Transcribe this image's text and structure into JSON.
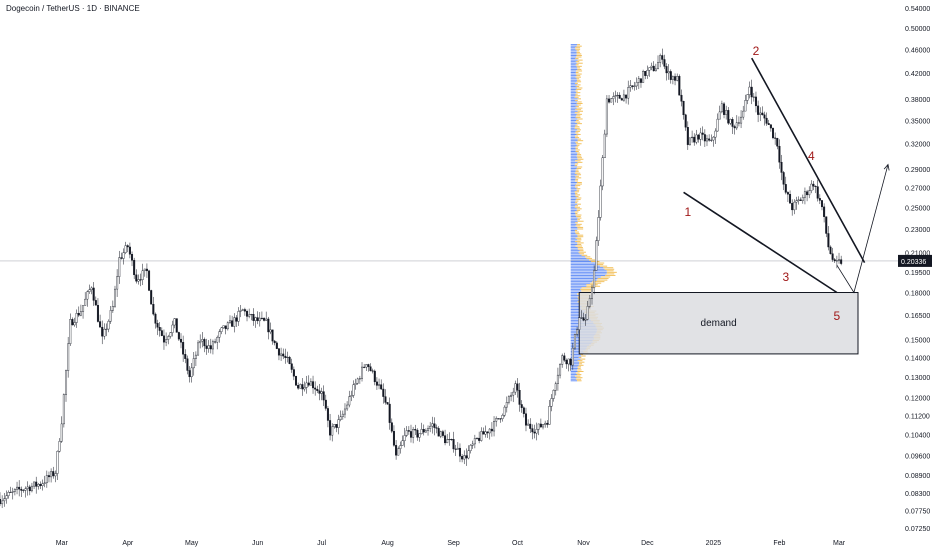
{
  "header": {
    "title": "Dogecoin / TetherUS · 1D · BINANCE"
  },
  "chart_data": {
    "type": "candlestick",
    "y_scale": "log",
    "ylim": [
      0.0725,
      0.54
    ],
    "xlim": [
      "2024-02-01",
      "2025-03-24"
    ],
    "y_ticks": [
      "0.54000",
      "0.50000",
      "0.46000",
      "0.42000",
      "0.38000",
      "0.35000",
      "0.32000",
      "0.29000",
      "0.27000",
      "0.25000",
      "0.23000",
      "0.21000",
      "0.19500",
      "0.18000",
      "0.16500",
      "0.15000",
      "0.14000",
      "0.13000",
      "0.12000",
      "0.11200",
      "0.10400",
      "0.09600",
      "0.08900",
      "0.08300",
      "0.07750",
      "0.07250"
    ],
    "x_ticks": [
      {
        "label": "Mar",
        "date": "2024-03-01"
      },
      {
        "label": "Apr",
        "date": "2024-04-01"
      },
      {
        "label": "May",
        "date": "2024-05-01"
      },
      {
        "label": "Jun",
        "date": "2024-06-01"
      },
      {
        "label": "Jul",
        "date": "2024-07-01"
      },
      {
        "label": "Aug",
        "date": "2024-08-01"
      },
      {
        "label": "Sep",
        "date": "2024-09-01"
      },
      {
        "label": "Oct",
        "date": "2024-10-01"
      },
      {
        "label": "Nov",
        "date": "2024-11-01"
      },
      {
        "label": "Dec",
        "date": "2024-12-01"
      },
      {
        "label": "2025",
        "date": "2025-01-01"
      },
      {
        "label": "Feb",
        "date": "2025-02-01"
      },
      {
        "label": "Mar",
        "date": "2025-03-01"
      }
    ],
    "last_price": {
      "label": "0.20336",
      "value": 0.20336
    },
    "price_path": [
      [
        "2024-02-01",
        0.081
      ],
      [
        "2024-02-10",
        0.084
      ],
      [
        "2024-02-20",
        0.086
      ],
      [
        "2024-02-27",
        0.09
      ],
      [
        "2024-03-01",
        0.11
      ],
      [
        "2024-03-05",
        0.16
      ],
      [
        "2024-03-10",
        0.168
      ],
      [
        "2024-03-15",
        0.185
      ],
      [
        "2024-03-20",
        0.15
      ],
      [
        "2024-03-25",
        0.17
      ],
      [
        "2024-03-28",
        0.205
      ],
      [
        "2024-04-01",
        0.215
      ],
      [
        "2024-04-05",
        0.19
      ],
      [
        "2024-04-10",
        0.195
      ],
      [
        "2024-04-13",
        0.165
      ],
      [
        "2024-04-18",
        0.15
      ],
      [
        "2024-04-23",
        0.16
      ],
      [
        "2024-04-30",
        0.13
      ],
      [
        "2024-05-05",
        0.15
      ],
      [
        "2024-05-10",
        0.145
      ],
      [
        "2024-05-15",
        0.155
      ],
      [
        "2024-05-20",
        0.16
      ],
      [
        "2024-05-25",
        0.168
      ],
      [
        "2024-05-30",
        0.162
      ],
      [
        "2024-06-05",
        0.16
      ],
      [
        "2024-06-10",
        0.145
      ],
      [
        "2024-06-15",
        0.138
      ],
      [
        "2024-06-20",
        0.125
      ],
      [
        "2024-06-25",
        0.128
      ],
      [
        "2024-07-01",
        0.122
      ],
      [
        "2024-07-05",
        0.105
      ],
      [
        "2024-07-10",
        0.11
      ],
      [
        "2024-07-15",
        0.122
      ],
      [
        "2024-07-22",
        0.138
      ],
      [
        "2024-07-28",
        0.125
      ],
      [
        "2024-08-01",
        0.115
      ],
      [
        "2024-08-05",
        0.095
      ],
      [
        "2024-08-10",
        0.105
      ],
      [
        "2024-08-15",
        0.104
      ],
      [
        "2024-08-22",
        0.108
      ],
      [
        "2024-08-28",
        0.102
      ],
      [
        "2024-09-01",
        0.1
      ],
      [
        "2024-09-06",
        0.095
      ],
      [
        "2024-09-12",
        0.102
      ],
      [
        "2024-09-20",
        0.108
      ],
      [
        "2024-09-25",
        0.115
      ],
      [
        "2024-09-30",
        0.125
      ],
      [
        "2024-10-05",
        0.108
      ],
      [
        "2024-10-10",
        0.106
      ],
      [
        "2024-10-15",
        0.11
      ],
      [
        "2024-10-18",
        0.125
      ],
      [
        "2024-10-22",
        0.14
      ],
      [
        "2024-10-26",
        0.138
      ],
      [
        "2024-10-30",
        0.165
      ],
      [
        "2024-11-02",
        0.16
      ],
      [
        "2024-11-06",
        0.195
      ],
      [
        "2024-11-10",
        0.3
      ],
      [
        "2024-11-12",
        0.38
      ],
      [
        "2024-11-16",
        0.38
      ],
      [
        "2024-11-20",
        0.385
      ],
      [
        "2024-11-25",
        0.4
      ],
      [
        "2024-11-30",
        0.42
      ],
      [
        "2024-12-05",
        0.43
      ],
      [
        "2024-12-08",
        0.45
      ],
      [
        "2024-12-10",
        0.42
      ],
      [
        "2024-12-15",
        0.41
      ],
      [
        "2024-12-20",
        0.32
      ],
      [
        "2024-12-25",
        0.33
      ],
      [
        "2024-12-31",
        0.32
      ],
      [
        "2025-01-05",
        0.37
      ],
      [
        "2025-01-10",
        0.34
      ],
      [
        "2025-01-15",
        0.36
      ],
      [
        "2025-01-18",
        0.4
      ],
      [
        "2025-01-22",
        0.36
      ],
      [
        "2025-01-26",
        0.35
      ],
      [
        "2025-01-31",
        0.32
      ],
      [
        "2025-02-03",
        0.27
      ],
      [
        "2025-02-07",
        0.25
      ],
      [
        "2025-02-12",
        0.26
      ],
      [
        "2025-02-17",
        0.275
      ],
      [
        "2025-02-21",
        0.25
      ],
      [
        "2025-02-24",
        0.215
      ],
      [
        "2025-02-27",
        0.2
      ],
      [
        "2025-03-02",
        0.203
      ]
    ],
    "annotations": [
      {
        "type": "wave_label",
        "text": "1",
        "date": "2024-12-20",
        "price": 0.242
      },
      {
        "type": "wave_label",
        "text": "2",
        "date": "2025-01-21",
        "price": 0.45
      },
      {
        "type": "wave_label",
        "text": "3",
        "date": "2025-02-04",
        "price": 0.188
      },
      {
        "type": "wave_label",
        "text": "4",
        "date": "2025-02-16",
        "price": 0.3
      },
      {
        "type": "wave_label",
        "text": "5",
        "date": "2025-02-28",
        "price": 0.162
      },
      {
        "type": "zone",
        "text": "demand",
        "from_date": "2024-10-30",
        "to_date": "2025-03-24",
        "top": 0.18,
        "bottom": 0.142
      },
      {
        "type": "trendline",
        "from": [
          "2025-01-19",
          0.445
        ],
        "to": [
          "2025-03-13",
          0.202
        ]
      },
      {
        "type": "trendline",
        "from": [
          "2024-12-18",
          0.265
        ],
        "to": [
          "2025-02-28",
          0.18
        ]
      },
      {
        "type": "projection_arrow",
        "points": [
          [
            "2025-02-28",
            0.2
          ],
          [
            "2025-03-08",
            0.18
          ],
          [
            "2025-03-24",
            0.295
          ]
        ]
      }
    ],
    "volume_profile": {
      "from_price": 0.128,
      "to_price": 0.47,
      "anchor_date": "2024-10-26"
    }
  },
  "colors": {
    "up": "#131722",
    "down": "#131722",
    "label_red": "#a01818",
    "zone_fill": "#dcdde0",
    "profile_blue": "#4c7df5",
    "profile_orange": "#f0b642"
  }
}
